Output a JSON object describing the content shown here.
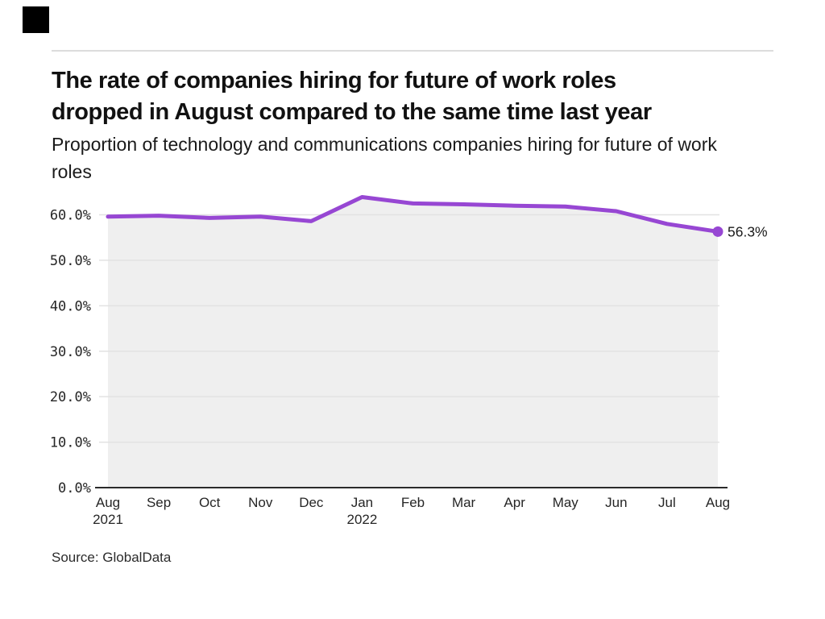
{
  "header": {
    "logo": "black-square-logo",
    "title_line1": "The rate of companies hiring for future of work roles",
    "title_line2": "dropped in August compared to the same time last year",
    "subtitle": "Proportion of technology and communications companies hiring for future of work roles"
  },
  "footer": {
    "source": "Source: GlobalData"
  },
  "chart_data": {
    "type": "area",
    "title": "Proportion of technology and communications companies hiring for future of work roles",
    "categories": [
      "Aug 2021",
      "Sep",
      "Oct",
      "Nov",
      "Dec",
      "Jan 2022",
      "Feb",
      "Mar",
      "Apr",
      "May",
      "Jun",
      "Jul",
      "Aug"
    ],
    "values": [
      59.6,
      59.8,
      59.3,
      59.6,
      58.6,
      63.9,
      62.5,
      62.3,
      62.0,
      61.8,
      60.8,
      58.0,
      56.3
    ],
    "y_ticks": [
      "0.0%",
      "10.0%",
      "20.0%",
      "30.0%",
      "40.0%",
      "50.0%",
      "60.0%"
    ],
    "y_tick_values": [
      0,
      10,
      20,
      30,
      40,
      50,
      60
    ],
    "ylim": [
      0,
      60
    ],
    "grid": "horizontal",
    "legend": "none",
    "end_label": "56.3%",
    "end_dot": true,
    "colors": {
      "line": "#9747d3",
      "fill": "#efefef",
      "grid": "#e2e2e2",
      "axis": "#2b2b2b",
      "tick_text": "#262626",
      "label_text": "#1a1a1a"
    }
  }
}
